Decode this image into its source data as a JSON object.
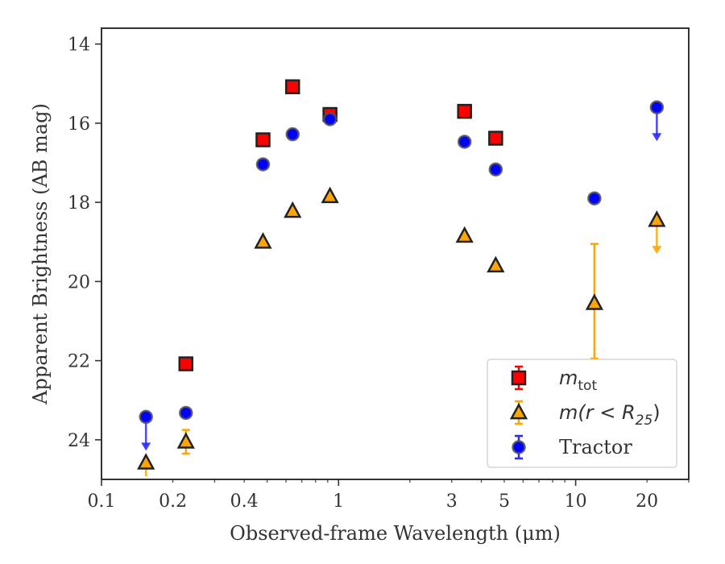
{
  "chart_data": {
    "type": "scatter",
    "xscale": "log",
    "yscale": "linear",
    "yinverted": true,
    "xlim": [
      0.1,
      30
    ],
    "ylim": [
      25,
      13.6
    ],
    "xlabel": "Observed-frame Wavelength (μm)",
    "ylabel": "Apparent Brightness (AB mag)",
    "grid": false,
    "legend_position": "lower-right",
    "xticks": [
      {
        "value": 0.1,
        "label": "0.1"
      },
      {
        "value": 0.2,
        "label": "0.2"
      },
      {
        "value": 0.4,
        "label": "0.4"
      },
      {
        "value": 1,
        "label": "1"
      },
      {
        "value": 3,
        "label": "3"
      },
      {
        "value": 5,
        "label": "5"
      },
      {
        "value": 10,
        "label": "10"
      },
      {
        "value": 20,
        "label": "20"
      }
    ],
    "yticks": [
      {
        "value": 14,
        "label": "14"
      },
      {
        "value": 16,
        "label": "16"
      },
      {
        "value": 18,
        "label": "18"
      },
      {
        "value": 20,
        "label": "20"
      },
      {
        "value": 22,
        "label": "22"
      },
      {
        "value": 24,
        "label": "24"
      }
    ],
    "series": [
      {
        "name": "m_tot",
        "legend_label": {
          "main": "m",
          "sub": "tot"
        },
        "marker": "square",
        "color": "#ff0000",
        "edgecolor": "#222222",
        "points": [
          {
            "x": 0.227,
            "y": 22.08
          },
          {
            "x": 0.48,
            "y": 16.42
          },
          {
            "x": 0.64,
            "y": 15.08
          },
          {
            "x": 0.92,
            "y": 15.78
          },
          {
            "x": 3.4,
            "y": 15.7
          },
          {
            "x": 4.6,
            "y": 16.38
          }
        ]
      },
      {
        "name": "m(r < R25)",
        "legend_label": {
          "main": "m(r < R",
          "sub": "25",
          "tail": ")"
        },
        "marker": "triangle",
        "color": "#ffa500",
        "edgecolor": "#222222",
        "points": [
          {
            "x": 0.154,
            "y": 24.58,
            "upper_limit": true
          },
          {
            "x": 0.227,
            "y": 24.05,
            "yerr": 0.3
          },
          {
            "x": 0.48,
            "y": 19.0
          },
          {
            "x": 0.64,
            "y": 18.22
          },
          {
            "x": 0.92,
            "y": 17.85
          },
          {
            "x": 3.4,
            "y": 18.85
          },
          {
            "x": 4.6,
            "y": 19.6
          },
          {
            "x": 12.0,
            "y": 20.55,
            "yerr_low": 1.5,
            "yerr_high": 1.4
          },
          {
            "x": 22.0,
            "y": 18.45,
            "upper_limit": true
          }
        ]
      },
      {
        "name": "Tractor",
        "legend_label": {
          "main": "Tractor"
        },
        "marker": "circle",
        "color": "#0000ff",
        "edgecolor": "#222222",
        "points": [
          {
            "x": 0.154,
            "y": 23.42,
            "upper_limit": true
          },
          {
            "x": 0.227,
            "y": 23.32
          },
          {
            "x": 0.48,
            "y": 17.04
          },
          {
            "x": 0.64,
            "y": 16.28
          },
          {
            "x": 0.92,
            "y": 15.9
          },
          {
            "x": 3.4,
            "y": 16.47
          },
          {
            "x": 4.6,
            "y": 17.17
          },
          {
            "x": 12.0,
            "y": 17.9
          },
          {
            "x": 22.0,
            "y": 15.6,
            "upper_limit": true
          }
        ]
      }
    ]
  }
}
